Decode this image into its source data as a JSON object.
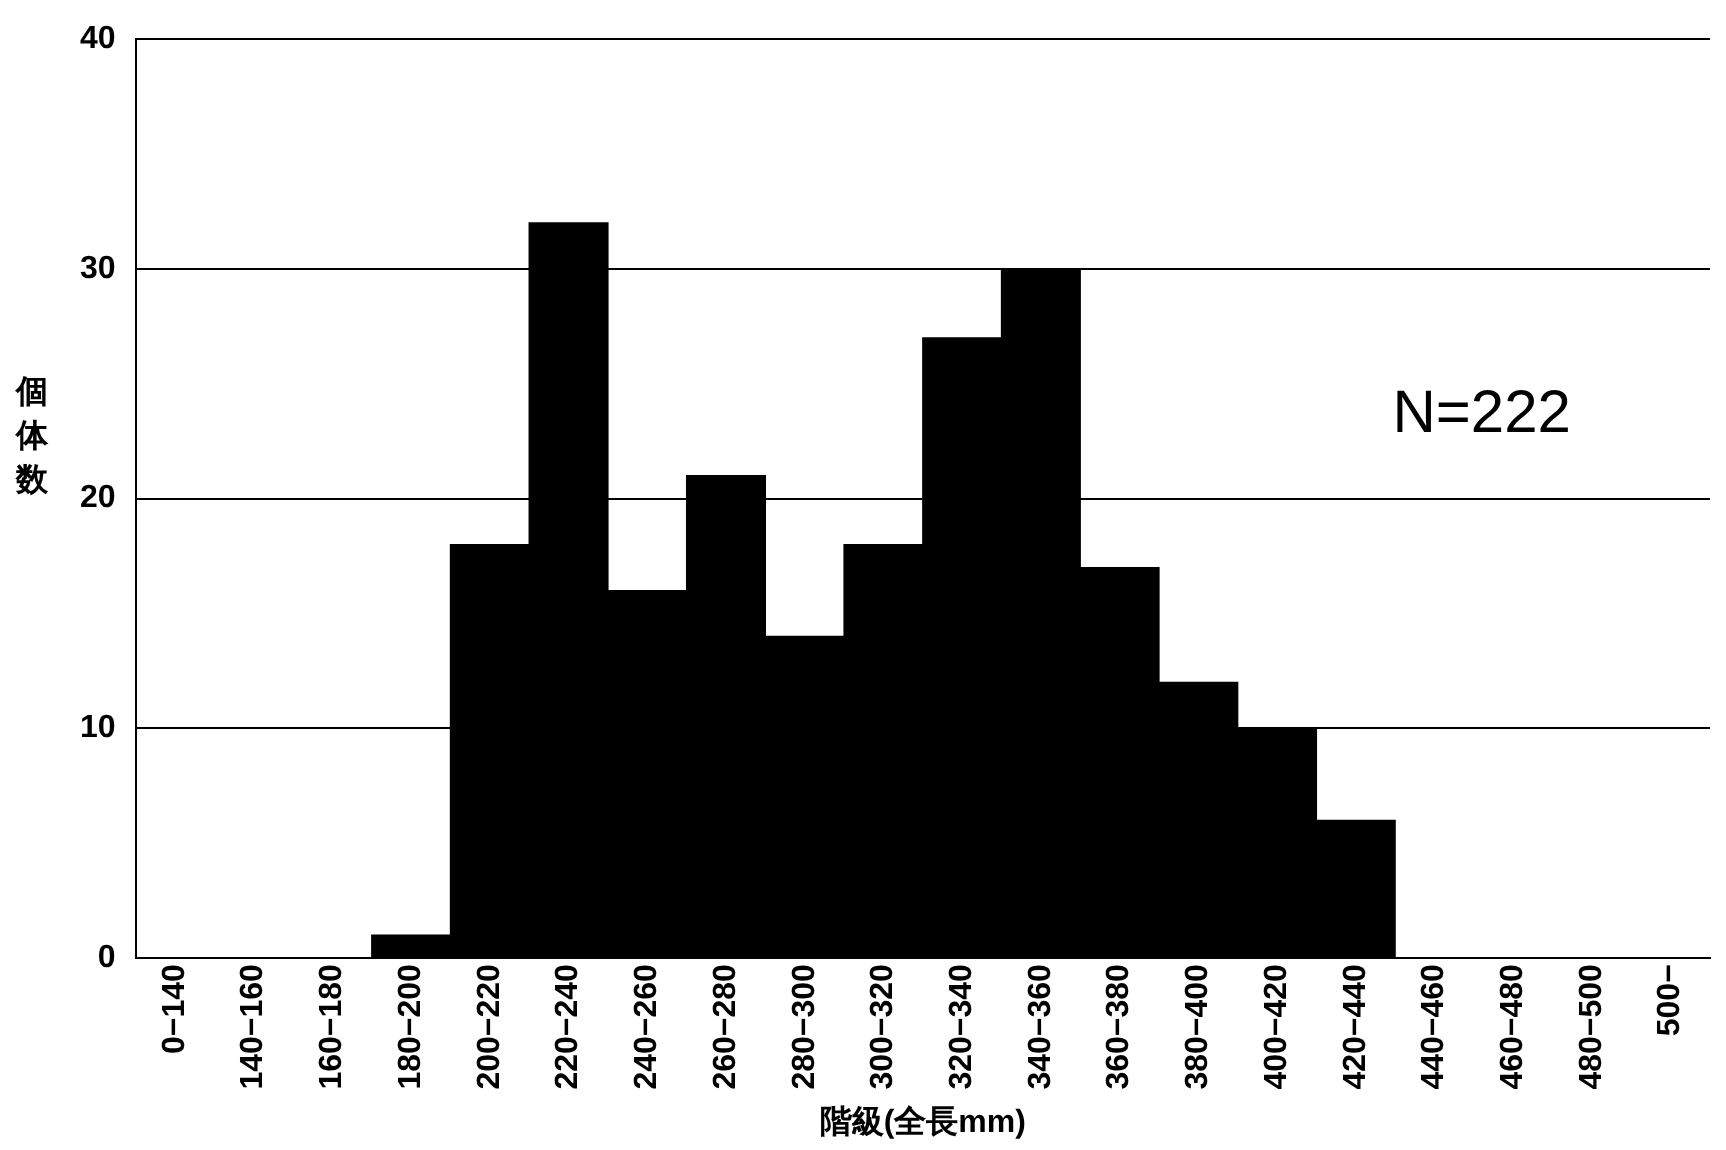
{
  "chart_data": {
    "type": "bar",
    "xlabel": "階級(全長mm)",
    "ylabel": "個体数",
    "categories": [
      "0−140",
      "140−160",
      "160−180",
      "180−200",
      "200−220",
      "220−240",
      "240−260",
      "260−280",
      "280−300",
      "300−320",
      "320−340",
      "340−360",
      "360−380",
      "380−400",
      "400−420",
      "420−440",
      "440−460",
      "460−480",
      "480−500",
      "500−"
    ],
    "values": [
      0,
      0,
      0,
      1,
      18,
      32,
      16,
      21,
      14,
      18,
      27,
      30,
      17,
      12,
      10,
      6,
      0,
      0,
      0,
      0
    ],
    "color": "#000000",
    "ylim": [
      0,
      40
    ],
    "yticks": [
      0,
      10,
      20,
      30,
      40
    ],
    "grid": "y",
    "legend": false,
    "annotations": [
      "N=222"
    ]
  }
}
